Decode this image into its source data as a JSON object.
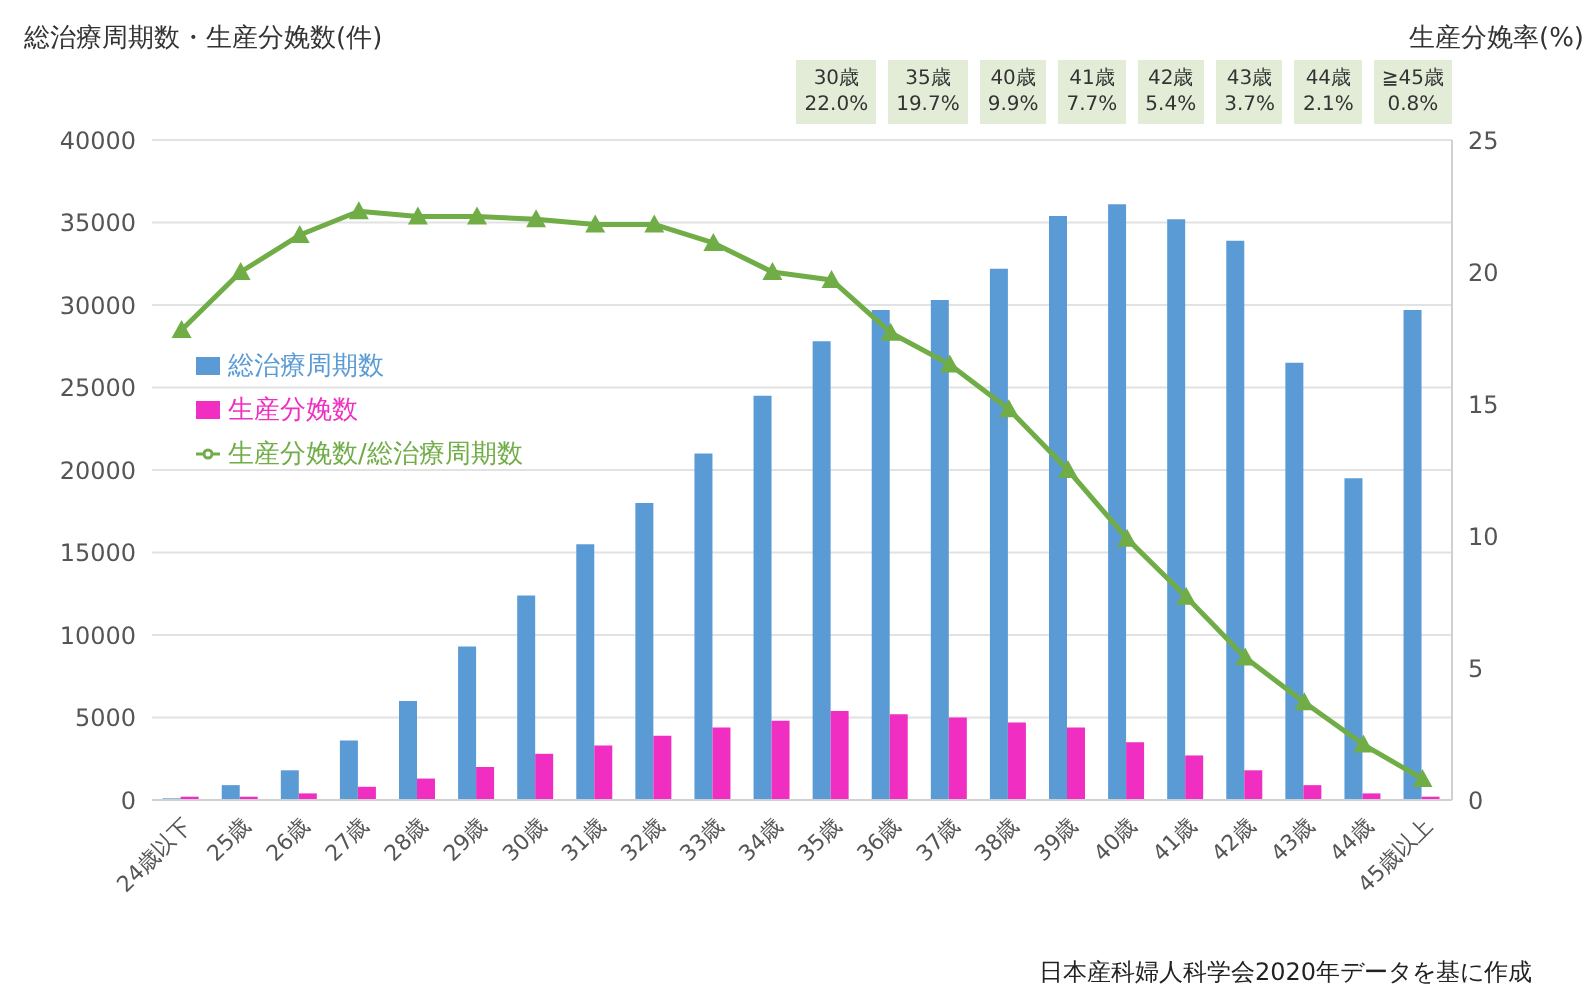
{
  "chart_data": {
    "type": "bar",
    "ylabel": "総治療周期数・生産分娩数(件)",
    "y2label": "生産分娩率(%)",
    "categories": [
      "24歳以下",
      "25歳",
      "26歳",
      "27歳",
      "28歳",
      "29歳",
      "30歳",
      "31歳",
      "32歳",
      "33歳",
      "34歳",
      "35歳",
      "36歳",
      "37歳",
      "38歳",
      "39歳",
      "40歳",
      "41歳",
      "42歳",
      "43歳",
      "44歳",
      "45歳以上"
    ],
    "series": [
      {
        "name": "総治療周期数",
        "color": "#5b9bd5",
        "values": [
          100,
          900,
          1800,
          3600,
          6000,
          9300,
          12400,
          15500,
          18000,
          21000,
          24500,
          27800,
          29700,
          30300,
          32200,
          35400,
          36100,
          35200,
          33900,
          26500,
          19500,
          29700
        ]
      },
      {
        "name": "生産分娩数",
        "color": "#f02fc2",
        "values": [
          200,
          200,
          400,
          800,
          1300,
          2000,
          2800,
          3300,
          3900,
          4400,
          4800,
          5400,
          5200,
          5000,
          4700,
          4400,
          3500,
          2700,
          1800,
          900,
          400,
          200
        ]
      },
      {
        "name": "生産分娩数/総治療周期数",
        "type": "line",
        "axis": "y2",
        "color": "#70ad47",
        "marker": "triangle",
        "values": [
          17.8,
          20.0,
          21.4,
          22.3,
          22.1,
          22.1,
          22.0,
          21.8,
          21.8,
          21.1,
          20.0,
          19.7,
          17.7,
          16.5,
          14.8,
          12.5,
          9.9,
          7.7,
          5.4,
          3.7,
          2.1,
          0.8
        ]
      }
    ],
    "ylim": [
      0,
      40000
    ],
    "yticks": [
      0,
      5000,
      10000,
      15000,
      20000,
      25000,
      30000,
      35000,
      40000
    ],
    "y2lim": [
      0,
      25
    ],
    "y2ticks": [
      0,
      5,
      10,
      15,
      20,
      25
    ],
    "grid": "y",
    "legend": "left",
    "annotations": [
      "30歳\n22.0%",
      "35歳\n19.7%",
      "40歳\n9.9%",
      "41歳\n7.7%",
      "42歳\n5.4%",
      "43歳\n3.7%",
      "44歳\n2.1%",
      "≧45歳\n0.8%",
      "日本産科婦人科学会2020年データを基に作成"
    ]
  }
}
